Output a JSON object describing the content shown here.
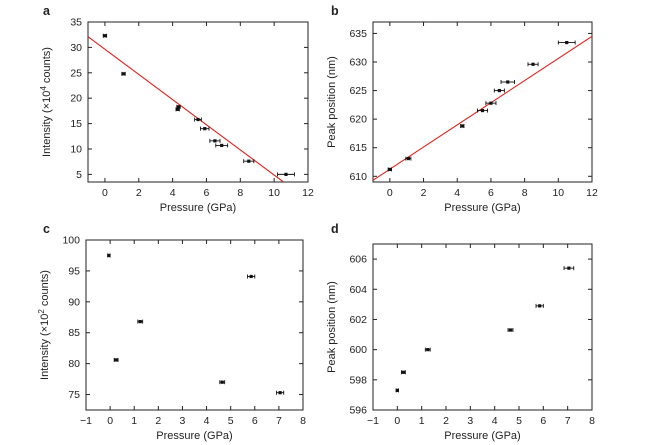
{
  "chart_data": [
    {
      "type": "scatter",
      "panel": "a",
      "xlabel": "Pressure (GPa)",
      "ylabel": "Intensity (×10",
      "ylabel_exp": "4",
      "ylabel_suffix": " counts)",
      "xlim": [
        -1,
        12
      ],
      "ylim": [
        3.5,
        35
      ],
      "xticks": [
        0,
        2,
        4,
        6,
        8,
        10,
        12
      ],
      "yticks": [
        5,
        10,
        15,
        20,
        25,
        30,
        35
      ],
      "ytick_labels": [
        "5",
        "10",
        "15",
        "20",
        "25",
        "30",
        "35"
      ],
      "points": [
        {
          "x": 0.0,
          "y": 32.3,
          "xerr": 0.1
        },
        {
          "x": 1.1,
          "y": 24.8,
          "xerr": 0.1
        },
        {
          "x": 4.3,
          "y": 17.8,
          "xerr": 0.1
        },
        {
          "x": 4.35,
          "y": 18.3,
          "xerr": 0.1
        },
        {
          "x": 5.5,
          "y": 15.8,
          "xerr": 0.2
        },
        {
          "x": 5.9,
          "y": 14.0,
          "xerr": 0.25
        },
        {
          "x": 6.5,
          "y": 11.6,
          "xerr": 0.3
        },
        {
          "x": 6.9,
          "y": 10.7,
          "xerr": 0.35
        },
        {
          "x": 8.5,
          "y": 7.6,
          "xerr": 0.3
        },
        {
          "x": 10.7,
          "y": 5.0,
          "xerr": 0.5
        }
      ],
      "fit": {
        "x": [
          -1,
          10.55
        ],
        "y": [
          32.1,
          3.5
        ],
        "color": "#e0201b"
      }
    },
    {
      "type": "scatter",
      "panel": "b",
      "xlabel": "Pressure (GPa)",
      "ylabel": "Peak position (nm)",
      "ylabel_exp": "",
      "ylabel_suffix": "",
      "xlim": [
        -1,
        12
      ],
      "ylim": [
        609,
        637
      ],
      "xticks": [
        0,
        2,
        4,
        6,
        8,
        10,
        12
      ],
      "yticks": [
        610,
        615,
        620,
        625,
        630,
        635
      ],
      "ytick_labels": [
        "610",
        "615",
        "620",
        "625",
        "630",
        "635"
      ],
      "points": [
        {
          "x": 0.0,
          "y": 611.2,
          "xerr": 0.1
        },
        {
          "x": 1.1,
          "y": 613.1,
          "xerr": 0.15
        },
        {
          "x": 4.3,
          "y": 618.8,
          "xerr": 0.1
        },
        {
          "x": 5.5,
          "y": 621.5,
          "xerr": 0.3
        },
        {
          "x": 6.0,
          "y": 622.8,
          "xerr": 0.3
        },
        {
          "x": 6.5,
          "y": 625.0,
          "xerr": 0.3
        },
        {
          "x": 7.0,
          "y": 626.5,
          "xerr": 0.4
        },
        {
          "x": 8.5,
          "y": 629.6,
          "xerr": 0.3
        },
        {
          "x": 10.5,
          "y": 633.4,
          "xerr": 0.5
        }
      ],
      "fit": {
        "x": [
          -1,
          12
        ],
        "y": [
          609.3,
          634.5
        ],
        "color": "#e0201b"
      }
    },
    {
      "type": "scatter",
      "panel": "c",
      "xlabel": "Pressure (GPa)",
      "ylabel": "Intensity (×10",
      "ylabel_exp": "2",
      "ylabel_suffix": " counts)",
      "xlim": [
        -1,
        8
      ],
      "ylim": [
        72.5,
        100
      ],
      "xticks": [
        -1,
        0,
        1,
        2,
        3,
        4,
        5,
        6,
        7,
        8
      ],
      "yticks": [
        75,
        80,
        85,
        90,
        95,
        100
      ],
      "ytick_labels": [
        "75",
        "80",
        "85",
        "90",
        "95",
        "100"
      ],
      "points": [
        {
          "x": -0.05,
          "y": 97.5,
          "xerr": 0.05
        },
        {
          "x": 0.25,
          "y": 80.6,
          "xerr": 0.08
        },
        {
          "x": 1.25,
          "y": 86.8,
          "xerr": 0.1
        },
        {
          "x": 4.65,
          "y": 77.0,
          "xerr": 0.1
        },
        {
          "x": 5.85,
          "y": 94.1,
          "xerr": 0.15
        },
        {
          "x": 7.05,
          "y": 75.3,
          "xerr": 0.15
        }
      ],
      "fit": null
    },
    {
      "type": "scatter",
      "panel": "d",
      "xlabel": "Pressure (GPa)",
      "ylabel": "Peak position (nm)",
      "ylabel_exp": "",
      "ylabel_suffix": "",
      "xlim": [
        -1,
        8
      ],
      "ylim": [
        596,
        607
      ],
      "xticks": [
        -1,
        0,
        1,
        2,
        3,
        4,
        5,
        6,
        7,
        8
      ],
      "yticks": [
        596,
        598,
        600,
        602,
        604,
        606
      ],
      "ytick_labels": [
        "596",
        "598",
        "600",
        "602",
        "604",
        "606"
      ],
      "points": [
        {
          "x": 0.0,
          "y": 597.3,
          "xerr": 0.05
        },
        {
          "x": 0.25,
          "y": 598.5,
          "xerr": 0.08
        },
        {
          "x": 1.25,
          "y": 600.0,
          "xerr": 0.1
        },
        {
          "x": 4.65,
          "y": 601.3,
          "xerr": 0.1
        },
        {
          "x": 5.85,
          "y": 602.9,
          "xerr": 0.15
        },
        {
          "x": 7.05,
          "y": 605.4,
          "xerr": 0.2
        }
      ],
      "fit": null
    }
  ],
  "colors": {
    "axis": "#222222",
    "point": "#111111",
    "fit_line": "#e0201b"
  }
}
